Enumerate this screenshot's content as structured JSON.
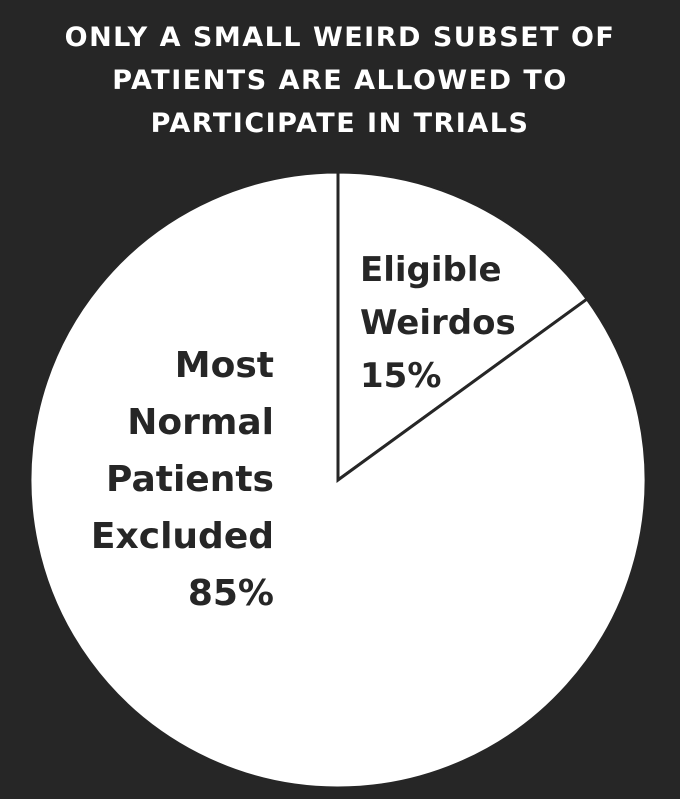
{
  "title_lines": [
    "ONLY A SMALL WEIRD SUBSET OF",
    "PATIENTS ARE ALLOWED TO",
    "PARTICIPATE IN TRIALS"
  ],
  "chart_data": {
    "type": "pie",
    "title": "ONLY A SMALL WEIRD SUBSET OF PATIENTS ARE ALLOWED TO PARTICIPATE IN TRIALS",
    "start_angle": "12 o'clock, clockwise",
    "slices": [
      {
        "label_lines": [
          "Eligible",
          "Weirdos"
        ],
        "value": 15,
        "value_label": "15%"
      },
      {
        "label_lines": [
          "Most",
          "Normal",
          "Patients",
          "Excluded"
        ],
        "value": 85,
        "value_label": "85%"
      }
    ],
    "colors": {
      "background": "#262626",
      "slice_fill": "#ffffff",
      "slice_stroke": "#262626",
      "label_text": "#262626",
      "title_text": "#ffffff"
    }
  }
}
